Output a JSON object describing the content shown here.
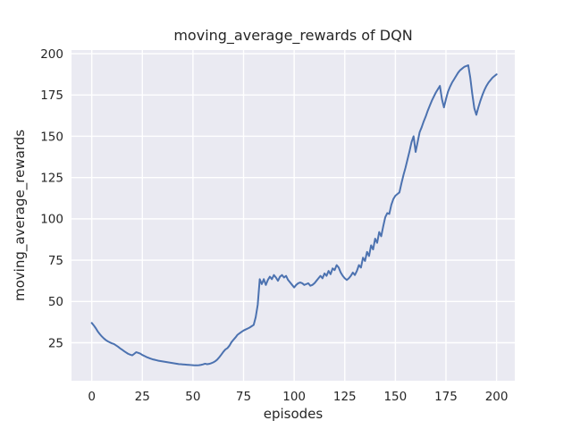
{
  "chart_data": {
    "type": "line",
    "title": "moving_average_rewards of DQN",
    "xlabel": "episodes",
    "ylabel": "moving_average_rewards",
    "x_ticks": [
      0,
      25,
      50,
      75,
      100,
      125,
      150,
      175,
      200
    ],
    "y_ticks": [
      25,
      50,
      75,
      100,
      125,
      150,
      175,
      200
    ],
    "xlim": [
      -10,
      209
    ],
    "ylim": [
      2.0,
      202.2
    ],
    "grid": "on",
    "legend_position": "none",
    "style": "seaborn-darkgrid",
    "colors": {
      "line": "#4c72b0",
      "axes_background": "#eaeaf2",
      "grid": "#ffffff",
      "text": "#262626",
      "figure_background": "#ffffff"
    },
    "series": [
      {
        "name": "DQN moving average rewards",
        "x_start": 0,
        "x_step": 1,
        "values": [
          37.0,
          35.5,
          33.8,
          31.8,
          30.2,
          28.8,
          27.6,
          26.6,
          25.8,
          25.2,
          24.6,
          24.2,
          23.4,
          22.6,
          21.6,
          20.8,
          19.9,
          19.1,
          18.3,
          17.8,
          17.4,
          18.3,
          19.3,
          18.9,
          18.4,
          17.6,
          17.0,
          16.4,
          15.9,
          15.4,
          15.0,
          14.7,
          14.4,
          14.1,
          13.9,
          13.7,
          13.5,
          13.3,
          13.1,
          12.9,
          12.7,
          12.5,
          12.3,
          12.1,
          12.0,
          11.9,
          11.8,
          11.7,
          11.6,
          11.5,
          11.4,
          11.3,
          11.3,
          11.4,
          11.6,
          11.9,
          12.3,
          12.0,
          12.2,
          12.6,
          13.1,
          13.8,
          14.8,
          16.2,
          17.8,
          19.5,
          20.9,
          21.7,
          23.2,
          25.3,
          26.8,
          28.2,
          29.8,
          30.7,
          31.6,
          32.4,
          33.0,
          33.6,
          34.2,
          35.0,
          35.8,
          40.5,
          48.0,
          63.5,
          60.5,
          63.5,
          60.0,
          63.0,
          65.0,
          63.5,
          66.0,
          64.5,
          62.5,
          65.0,
          66.0,
          64.5,
          65.5,
          63.0,
          61.5,
          60.0,
          58.5,
          60.0,
          61.0,
          61.5,
          61.0,
          60.0,
          60.5,
          61.0,
          59.5,
          60.0,
          61.0,
          62.5,
          64.0,
          65.5,
          64.0,
          67.0,
          65.5,
          68.5,
          66.5,
          70.0,
          69.0,
          72.0,
          70.5,
          67.5,
          65.5,
          64.0,
          63.0,
          64.0,
          65.5,
          67.5,
          66.0,
          68.5,
          72.0,
          70.5,
          76.5,
          74.5,
          80.0,
          77.5,
          84.0,
          81.5,
          88.0,
          85.5,
          92.0,
          89.5,
          95.5,
          101.0,
          103.5,
          103.0,
          108.5,
          112.0,
          114.0,
          115.0,
          116.0,
          121.5,
          126.5,
          131.0,
          136.0,
          141.0,
          146.5,
          150.0,
          140.5,
          146.5,
          152.5,
          155.5,
          159.0,
          162.0,
          165.5,
          168.5,
          171.5,
          174.0,
          176.5,
          178.5,
          180.5,
          172.5,
          167.5,
          172.5,
          177.0,
          180.0,
          182.5,
          184.5,
          186.5,
          188.5,
          190.0,
          191.0,
          192.0,
          192.5,
          193.0,
          185.5,
          175.5,
          167.0,
          163.0,
          167.5,
          171.5,
          175.0,
          178.0,
          180.5,
          182.5,
          184.0,
          185.5,
          186.5,
          187.5
        ]
      }
    ]
  }
}
